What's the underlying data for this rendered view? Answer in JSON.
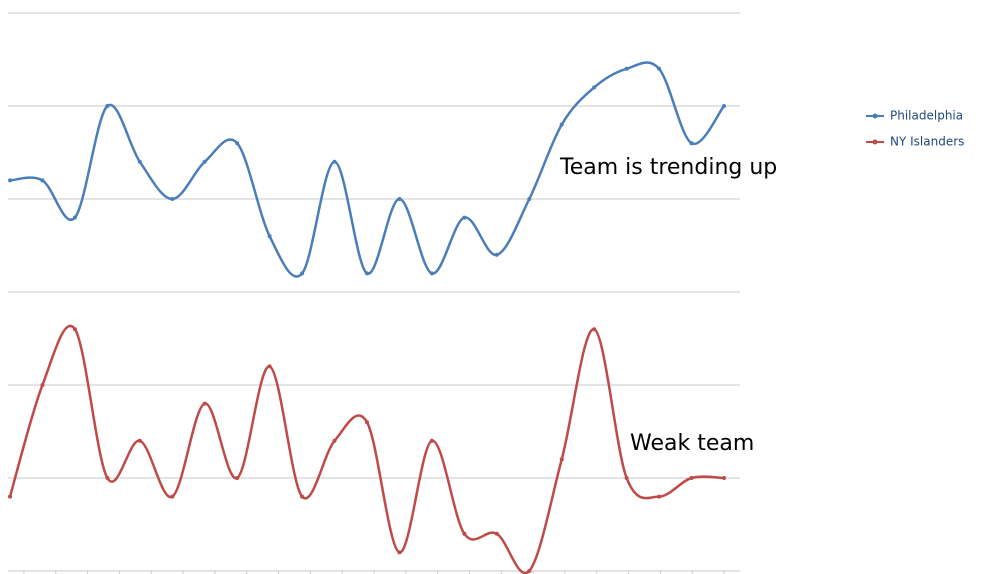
{
  "chart_data": {
    "type": "line",
    "categories": [
      null,
      null,
      null,
      null,
      null,
      null,
      null,
      null,
      null,
      null,
      null,
      null,
      null,
      null,
      null,
      null,
      null,
      null,
      null,
      null,
      null,
      null,
      null
    ],
    "series": [
      {
        "name": "Philadelphia",
        "color": "#4a7ebb",
        "values": [
          4.2,
          4.2,
          3.8,
          5.0,
          4.4,
          4.0,
          4.4,
          4.6,
          3.6,
          3.2,
          4.4,
          3.2,
          4.0,
          3.2,
          3.8,
          3.4,
          4.0,
          4.8,
          5.2,
          5.4,
          5.4,
          4.6,
          5.0
        ]
      },
      {
        "name": "NY Islanders",
        "color": "#be4b48",
        "values": [
          0.8,
          2.0,
          2.6,
          1.0,
          1.4,
          0.8,
          1.8,
          1.0,
          2.2,
          0.8,
          1.4,
          1.6,
          0.2,
          1.4,
          0.4,
          0.4,
          0.0,
          1.2,
          2.6,
          1.0,
          0.8,
          1.0,
          1.0
        ]
      }
    ],
    "annotations": [
      "Team is trending up",
      "Weak team"
    ],
    "ylim": [
      0,
      6
    ],
    "yticks": [
      0,
      1,
      2,
      3,
      4,
      5,
      6
    ],
    "grid": true,
    "smooth": true,
    "legend": "right"
  }
}
